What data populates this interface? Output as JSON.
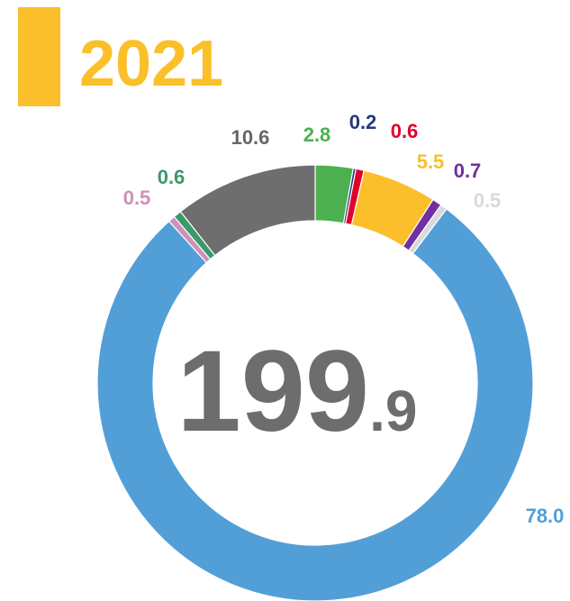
{
  "chart_data": {
    "type": "donut",
    "title": "2021",
    "center_value": "199",
    "center_decimal": ".9",
    "categories": [
      null,
      null,
      null,
      null,
      null,
      null,
      null,
      null,
      null,
      null
    ],
    "values": [
      2.8,
      0.2,
      0.6,
      5.5,
      0.7,
      0.5,
      78.0,
      0.5,
      0.6,
      10.6
    ],
    "value_labels": [
      "2.8",
      "0.2",
      "0.6",
      "5.5",
      "0.7",
      "0.5",
      "78.0",
      "0.5",
      "0.6",
      "10.6"
    ],
    "colors": [
      "#4caf50",
      "#253a7f",
      "#e0002a",
      "#fbbf2b",
      "#7030a0",
      "#d9d9d9",
      "#529fd8",
      "#d08fb8",
      "#3a9a6a",
      "#6e6e6e"
    ]
  }
}
